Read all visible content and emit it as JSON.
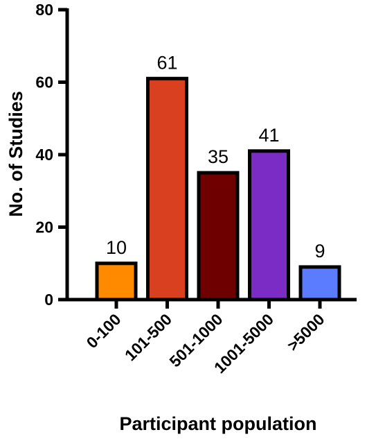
{
  "chart_data": {
    "type": "bar",
    "categories": [
      "0-100",
      "101-500",
      "501-1000",
      "1001-5000",
      ">5000"
    ],
    "values": [
      10,
      61,
      35,
      41,
      9
    ],
    "colors": [
      "#FF8A00",
      "#D9401F",
      "#6E0000",
      "#7A2CC4",
      "#5B7CFF"
    ],
    "ylabel": "No. of Studies",
    "xlabel": "Participant population",
    "ylim": [
      0,
      80
    ],
    "yticks": [
      "0",
      "20",
      "40",
      "60",
      "80"
    ],
    "grid": false,
    "legend": "none"
  }
}
